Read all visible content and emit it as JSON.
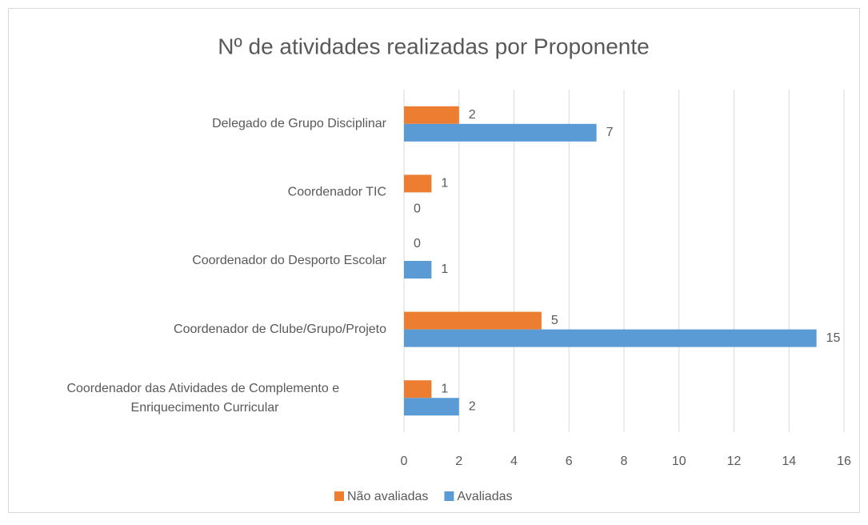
{
  "chart_data": {
    "type": "hbar",
    "title": "Nº de atividades realizadas por Proponente",
    "categories": [
      "Delegado de Grupo Disciplinar",
      "Coordenador TIC",
      "Coordenador do Desporto Escolar",
      "Coordenador de Clube/Grupo/Projeto",
      "Coordenador das Atividades de Complemento e Enriquecimento Curricular"
    ],
    "series": [
      {
        "name": "Não avaliadas",
        "color": "#ed7d31",
        "values": [
          2,
          1,
          0,
          5,
          1
        ]
      },
      {
        "name": "Avaliadas",
        "color": "#5b9bd5",
        "values": [
          7,
          0,
          1,
          15,
          2
        ]
      }
    ],
    "xlim": [
      0,
      16
    ],
    "xticks": [
      0,
      2,
      4,
      6,
      8,
      10,
      12,
      14,
      16
    ],
    "grid": true,
    "legend": "bottom"
  }
}
